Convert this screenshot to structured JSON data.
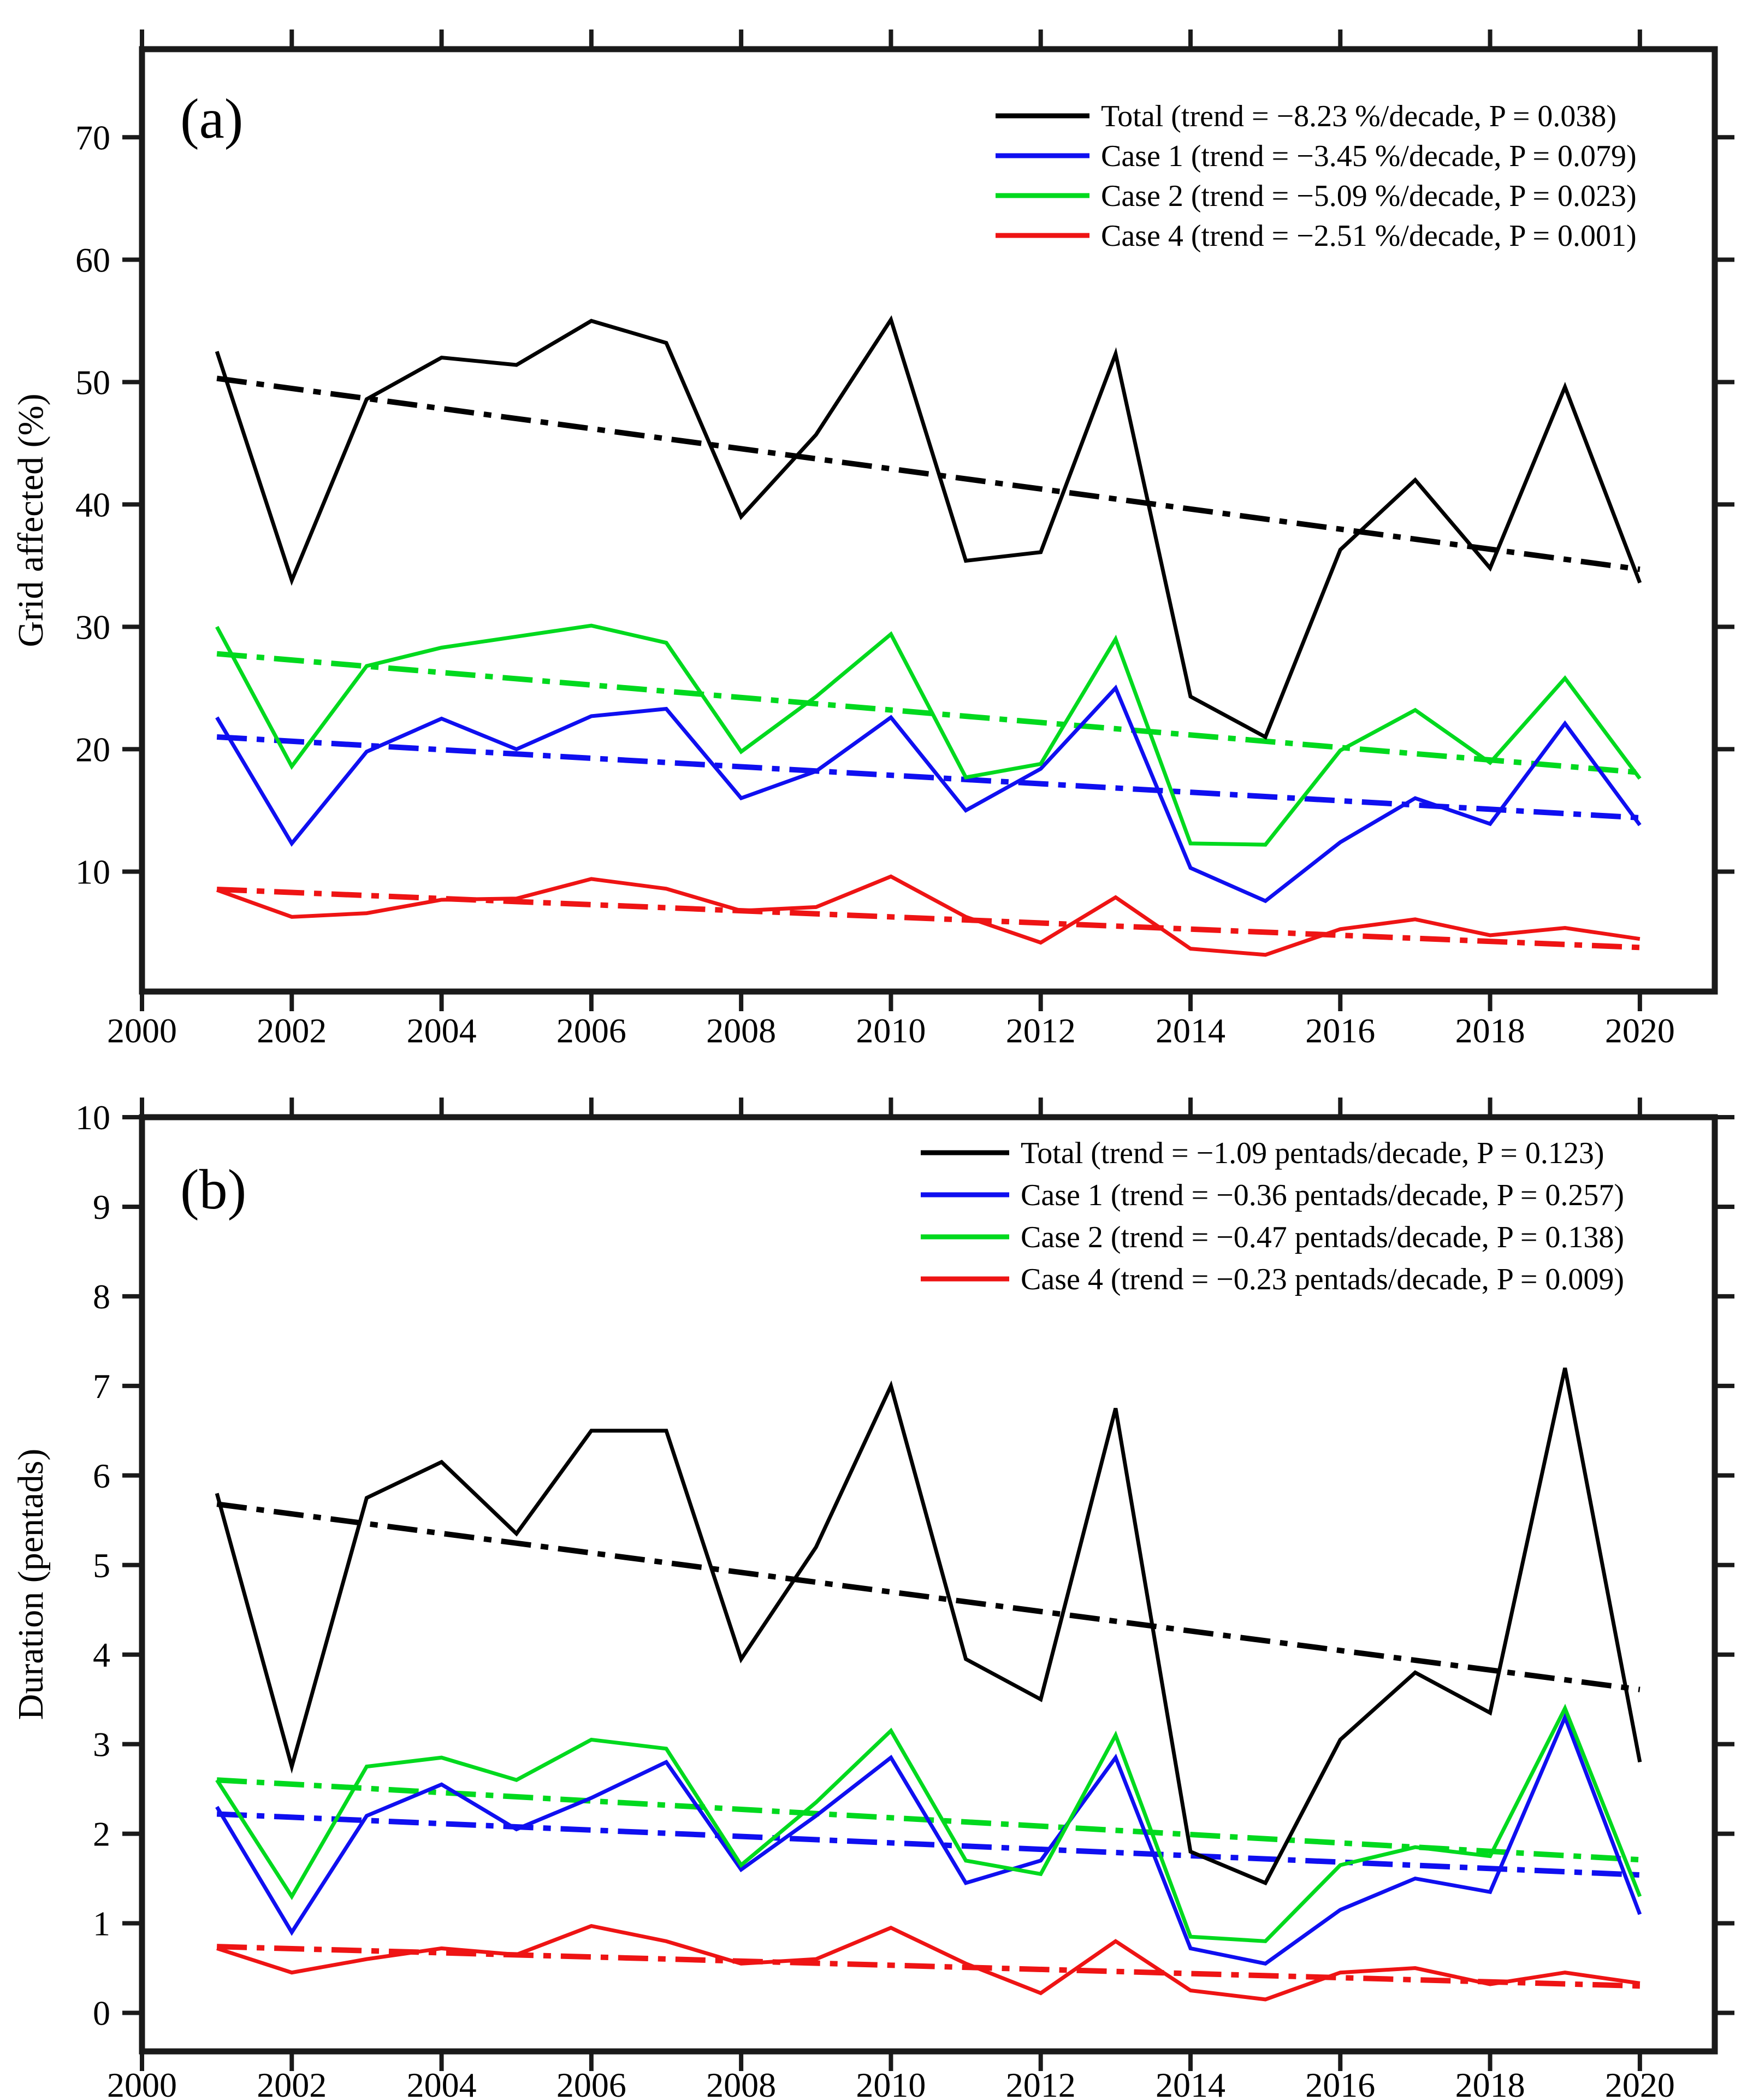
{
  "figure": {
    "background": "#ffffff",
    "panel_a_label": "(a)",
    "panel_b_label": "(b)"
  },
  "colors": {
    "total": "#000000",
    "case1": "#0f0ff0",
    "case2": "#00d91e",
    "case4": "#ee1414",
    "axis": "#1a1a1a"
  },
  "chart_data": [
    {
      "id": "a",
      "panel_label": "(a)",
      "type": "line",
      "title": "",
      "xlabel": "",
      "ylabel": "Grid affected (%)",
      "x": [
        2001,
        2002,
        2003,
        2004,
        2005,
        2006,
        2007,
        2008,
        2009,
        2010,
        2011,
        2012,
        2013,
        2014,
        2015,
        2016,
        2017,
        2018,
        2019,
        2020
      ],
      "xlim": [
        2000,
        2021
      ],
      "ylim": [
        0.2,
        77.2
      ],
      "xticks": [
        2000,
        2002,
        2004,
        2006,
        2008,
        2010,
        2012,
        2014,
        2016,
        2018,
        2020
      ],
      "yticks": [
        10,
        20,
        30,
        40,
        50,
        60,
        70
      ],
      "grid": false,
      "legend_position": "top-right",
      "series": [
        {
          "name": "Total",
          "color_key": "total",
          "label": "Total (trend = −8.23 %/decade, P = 0.038)",
          "trend_per_decade": -8.23,
          "p_value": 0.038,
          "values": [
            52.5,
            33.8,
            48.6,
            52.0,
            51.4,
            55.0,
            53.2,
            39.0,
            45.7,
            55.1,
            35.4,
            36.1,
            52.3,
            24.3,
            21.0,
            36.3,
            42.0,
            34.8,
            49.6,
            33.6
          ],
          "trend": {
            "start": 50.3,
            "end": 34.7
          }
        },
        {
          "name": "Case 1",
          "color_key": "case1",
          "label": "Case 1 (trend = −3.45 %/decade, P = 0.079)",
          "trend_per_decade": -3.45,
          "p_value": 0.079,
          "values": [
            22.6,
            12.3,
            19.8,
            22.5,
            20.0,
            22.7,
            23.3,
            16.0,
            18.2,
            22.6,
            15.0,
            18.4,
            25.0,
            10.3,
            7.6,
            12.4,
            16.0,
            13.9,
            22.1,
            13.8
          ],
          "trend": {
            "start": 21.0,
            "end": 14.4
          }
        },
        {
          "name": "Case 2",
          "color_key": "case2",
          "label": "Case 2 (trend = −5.09 %/decade, P = 0.023)",
          "trend_per_decade": -5.09,
          "p_value": 0.023,
          "values": [
            30.0,
            18.6,
            26.8,
            28.3,
            29.2,
            30.1,
            28.7,
            19.8,
            24.3,
            29.4,
            17.7,
            18.8,
            29.0,
            12.3,
            12.2,
            19.9,
            23.2,
            18.9,
            25.8,
            17.6
          ],
          "trend": {
            "start": 27.8,
            "end": 18.1
          }
        },
        {
          "name": "Case 4",
          "color_key": "case4",
          "label": "Case 4 (trend = −2.51 %/decade, P = 0.001)",
          "trend_per_decade": -2.51,
          "p_value": 0.001,
          "values": [
            8.5,
            6.3,
            6.6,
            7.7,
            7.8,
            9.4,
            8.6,
            6.8,
            7.1,
            9.6,
            6.3,
            4.2,
            7.9,
            3.7,
            3.2,
            5.3,
            6.1,
            4.8,
            5.4,
            4.5
          ],
          "trend": {
            "start": 8.55,
            "end": 3.8
          }
        }
      ]
    },
    {
      "id": "b",
      "panel_label": "(b)",
      "type": "line",
      "title": "",
      "xlabel": "",
      "ylabel": "Duration (pentads)",
      "x": [
        2001,
        2002,
        2003,
        2004,
        2005,
        2006,
        2007,
        2008,
        2009,
        2010,
        2011,
        2012,
        2013,
        2014,
        2015,
        2016,
        2017,
        2018,
        2019,
        2020
      ],
      "xlim": [
        2000,
        2021
      ],
      "ylim": [
        -0.43,
        10
      ],
      "xticks": [
        2000,
        2002,
        2004,
        2006,
        2008,
        2010,
        2012,
        2014,
        2016,
        2018,
        2020
      ],
      "yticks": [
        0,
        1,
        2,
        3,
        4,
        5,
        6,
        7,
        8,
        9,
        10
      ],
      "grid": false,
      "legend_position": "top-right",
      "series": [
        {
          "name": "Total",
          "color_key": "total",
          "label": "Total (trend = −1.09 pentads/decade, P = 0.123)",
          "trend_per_decade": -1.09,
          "p_value": 0.123,
          "values": [
            5.8,
            2.75,
            5.75,
            6.15,
            5.35,
            6.5,
            6.5,
            3.95,
            5.2,
            7.0,
            3.95,
            3.5,
            6.75,
            1.8,
            1.45,
            3.05,
            3.8,
            3.35,
            7.2,
            2.8
          ],
          "trend": {
            "start": 5.68,
            "end": 3.61
          }
        },
        {
          "name": "Case 1",
          "color_key": "case1",
          "label": "Case 1 (trend = −0.36 pentads/decade, P = 0.257)",
          "trend_per_decade": -0.36,
          "p_value": 0.257,
          "values": [
            2.3,
            0.9,
            2.2,
            2.55,
            2.05,
            2.4,
            2.8,
            1.6,
            2.2,
            2.85,
            1.45,
            1.7,
            2.85,
            0.72,
            0.55,
            1.15,
            1.5,
            1.35,
            3.3,
            1.1
          ],
          "trend": {
            "start": 2.22,
            "end": 1.54
          }
        },
        {
          "name": "Case 2",
          "color_key": "case2",
          "label": "Case 2 (trend = −0.47 pentads/decade, P = 0.138)",
          "trend_per_decade": -0.47,
          "p_value": 0.138,
          "values": [
            2.6,
            1.3,
            2.75,
            2.85,
            2.6,
            3.05,
            2.95,
            1.65,
            2.35,
            3.15,
            1.7,
            1.55,
            3.1,
            0.85,
            0.8,
            1.65,
            1.85,
            1.75,
            3.4,
            1.3
          ],
          "trend": {
            "start": 2.6,
            "end": 1.71
          }
        },
        {
          "name": "Case 4",
          "color_key": "case4",
          "label": "Case 4 (trend = −0.23 pentads/decade, P = 0.009)",
          "trend_per_decade": -0.23,
          "p_value": 0.009,
          "values": [
            0.72,
            0.45,
            0.6,
            0.72,
            0.65,
            0.97,
            0.8,
            0.55,
            0.6,
            0.95,
            0.55,
            0.22,
            0.8,
            0.25,
            0.15,
            0.45,
            0.5,
            0.32,
            0.45,
            0.33
          ],
          "trend": {
            "start": 0.74,
            "end": 0.3
          }
        }
      ]
    }
  ]
}
